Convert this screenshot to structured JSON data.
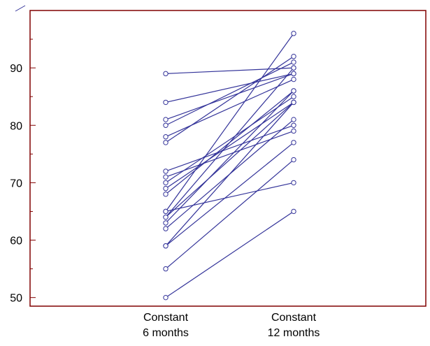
{
  "chart_data": {
    "type": "line",
    "title": "",
    "xlabel": "",
    "ylabel": "",
    "categories": [
      {
        "line1": "Constant",
        "line2": "6 months"
      },
      {
        "line1": "Constant",
        "line2": "12 months"
      }
    ],
    "ylim": [
      48.5,
      100
    ],
    "y_ticks": [
      50,
      60,
      70,
      80,
      90
    ],
    "grid": false,
    "legend": "none",
    "colors": {
      "series": "#333399",
      "axes": "#800000"
    },
    "pairs": [
      [
        89,
        90
      ],
      [
        84,
        89
      ],
      [
        81,
        89
      ],
      [
        80,
        91
      ],
      [
        78,
        88
      ],
      [
        77,
        92
      ],
      [
        72,
        80
      ],
      [
        71,
        79
      ],
      [
        70,
        85
      ],
      [
        69,
        84
      ],
      [
        68,
        86
      ],
      [
        65,
        96
      ],
      [
        64,
        84
      ],
      [
        64,
        90
      ],
      [
        63,
        86
      ],
      [
        62,
        81
      ],
      [
        59,
        84
      ],
      [
        55,
        74
      ],
      [
        50,
        65
      ],
      [
        65,
        70
      ],
      [
        59,
        77
      ]
    ]
  }
}
